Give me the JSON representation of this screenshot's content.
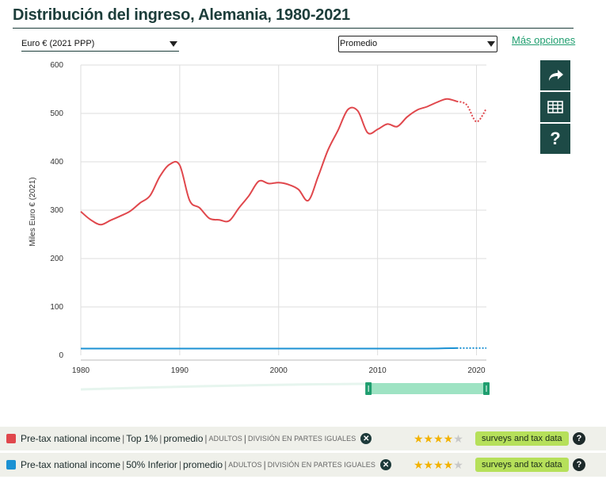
{
  "header": {
    "title": "Distribución del ingreso, Alemania, 1980-2021",
    "unit_select": "Euro € (2021 PPP)",
    "mode_select": "Promedio",
    "more_options": "Más opciones"
  },
  "side_buttons": {
    "share": "share-icon",
    "table": "table-icon",
    "help": "?"
  },
  "chart_data": {
    "type": "line",
    "title": "",
    "xlabel": "",
    "ylabel": "Miles Euro € (2021)",
    "xlim": [
      1980,
      2021
    ],
    "ylim": [
      0,
      600
    ],
    "x_ticks": [
      "1980",
      "1990",
      "2000",
      "2010",
      "2020"
    ],
    "y_ticks": [
      "0",
      "100",
      "200",
      "300",
      "400",
      "500",
      "600"
    ],
    "grid": true,
    "series": [
      {
        "name": "Pre-tax national income | Top 1% | promedio",
        "color": "#e0474c",
        "x": [
          1980,
          1981,
          1982,
          1983,
          1984,
          1985,
          1986,
          1987,
          1988,
          1989,
          1990,
          1991,
          1992,
          1993,
          1994,
          1995,
          1996,
          1997,
          1998,
          1999,
          2000,
          2001,
          2002,
          2003,
          2004,
          2005,
          2006,
          2007,
          2008,
          2009,
          2010,
          2011,
          2012,
          2013,
          2014,
          2015,
          2016,
          2017,
          2018,
          2019,
          2020,
          2021
        ],
        "values": [
          297,
          280,
          270,
          279,
          288,
          298,
          315,
          330,
          370,
          395,
          393,
          320,
          305,
          283,
          280,
          278,
          305,
          330,
          360,
          355,
          357,
          353,
          343,
          320,
          370,
          425,
          465,
          508,
          505,
          460,
          467,
          478,
          473,
          493,
          507,
          514,
          523,
          530,
          525,
          518,
          483,
          510
        ],
        "dotted_from_x": 2018
      },
      {
        "name": "Pre-tax national income | 50% Inferior | promedio",
        "color": "#1b91d3",
        "x": [
          1980,
          1985,
          1990,
          1995,
          2000,
          2005,
          2010,
          2015,
          2018,
          2021
        ],
        "values": [
          14,
          14,
          14,
          14,
          14,
          14,
          14,
          14,
          15,
          15
        ],
        "dotted_from_x": 2018
      }
    ],
    "range_slider": {
      "start": 1980,
      "end": 2021,
      "selected": [
        2009,
        2021
      ]
    }
  },
  "legend": [
    {
      "color": "#e0474c",
      "indicator": "Pre-tax national income",
      "group": "Top 1%",
      "measure": "promedio",
      "population": "ADULTOS",
      "sharing": "DIVISIÓN EN PARTES IGUALES",
      "stars": 4,
      "source_badge": "surveys and tax data"
    },
    {
      "color": "#1b91d3",
      "indicator": "Pre-tax national income",
      "group": "50% Inferior",
      "measure": "promedio",
      "population": "ADULTOS",
      "sharing": "DIVISIÓN EN PARTES IGUALES",
      "stars": 4,
      "source_badge": "surveys and tax data"
    }
  ]
}
